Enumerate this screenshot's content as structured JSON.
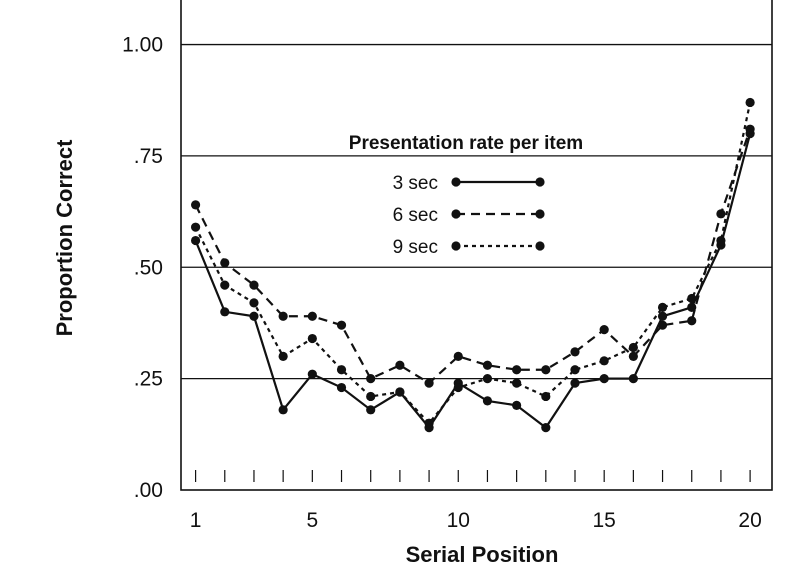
{
  "chart_data": {
    "type": "line",
    "xlabel": "Serial Position",
    "ylabel": "Proportion Correct",
    "xlim": [
      0.5,
      20.75
    ],
    "ylim": [
      0,
      1.1
    ],
    "x": [
      1,
      2,
      3,
      4,
      5,
      6,
      7,
      8,
      9,
      10,
      11,
      12,
      13,
      14,
      15,
      16,
      17,
      18,
      19,
      20
    ],
    "x_tick_labels": [
      {
        "value": 1,
        "label": "1"
      },
      {
        "value": 5,
        "label": "5"
      },
      {
        "value": 10,
        "label": "10"
      },
      {
        "value": 15,
        "label": "15"
      },
      {
        "value": 20,
        "label": "20"
      }
    ],
    "y_tick_labels": [
      {
        "value": 0,
        "label": ".00"
      },
      {
        "value": 0.25,
        "label": ".25"
      },
      {
        "value": 0.5,
        "label": ".50"
      },
      {
        "value": 0.75,
        "label": ".75"
      },
      {
        "value": 1.0,
        "label": "1.00"
      }
    ],
    "grid": "horizontal lines at .25, .50, .75, 1.00",
    "legend_title": "Presentation rate per item",
    "legend_placement": "center",
    "series": [
      {
        "name": "3 sec",
        "line_style": "solid",
        "values": [
          0.56,
          0.4,
          0.39,
          0.18,
          0.26,
          0.23,
          0.18,
          0.22,
          0.14,
          0.24,
          0.2,
          0.19,
          0.14,
          0.24,
          0.25,
          0.25,
          0.39,
          0.41,
          0.55,
          0.8
        ]
      },
      {
        "name": "6 sec",
        "line_style": "dashed",
        "values": [
          0.64,
          0.51,
          0.46,
          0.39,
          0.39,
          0.37,
          0.25,
          0.28,
          0.24,
          0.3,
          0.28,
          0.27,
          0.27,
          0.31,
          0.36,
          0.3,
          0.37,
          0.38,
          0.62,
          0.81
        ]
      },
      {
        "name": "9 sec",
        "line_style": "dotted",
        "values": [
          0.59,
          0.46,
          0.42,
          0.3,
          0.34,
          0.27,
          0.21,
          0.22,
          0.15,
          0.23,
          0.25,
          0.24,
          0.21,
          0.27,
          0.29,
          0.32,
          0.41,
          0.43,
          0.56,
          0.87
        ]
      }
    ],
    "colors": {
      "line": "#111111",
      "grid": "#111111",
      "background": "#ffffff"
    }
  }
}
